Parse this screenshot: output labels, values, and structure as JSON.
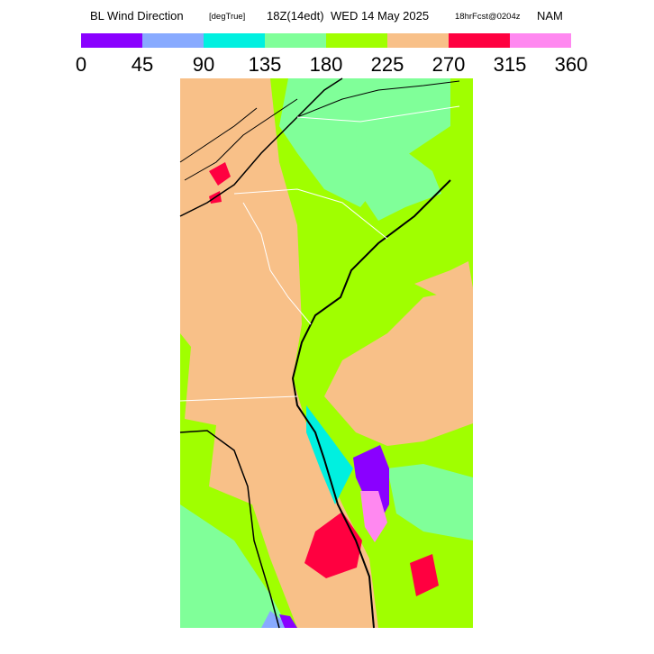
{
  "header": {
    "parts": [
      "BL Wind Direction",
      "[degTrue]",
      "18Z(14edt)",
      "WED 14 May 2025",
      "18hrFcst@0204z",
      "NAM"
    ]
  },
  "legend": {
    "ticks": [
      0,
      45,
      90,
      135,
      180,
      225,
      270,
      315,
      360
    ],
    "colors": [
      "#8a00ff",
      "#88aaff",
      "#00f0e0",
      "#80ff99",
      "#a0ff00",
      "#f8c088",
      "#ff0040",
      "#ff88f0"
    ]
  }
}
